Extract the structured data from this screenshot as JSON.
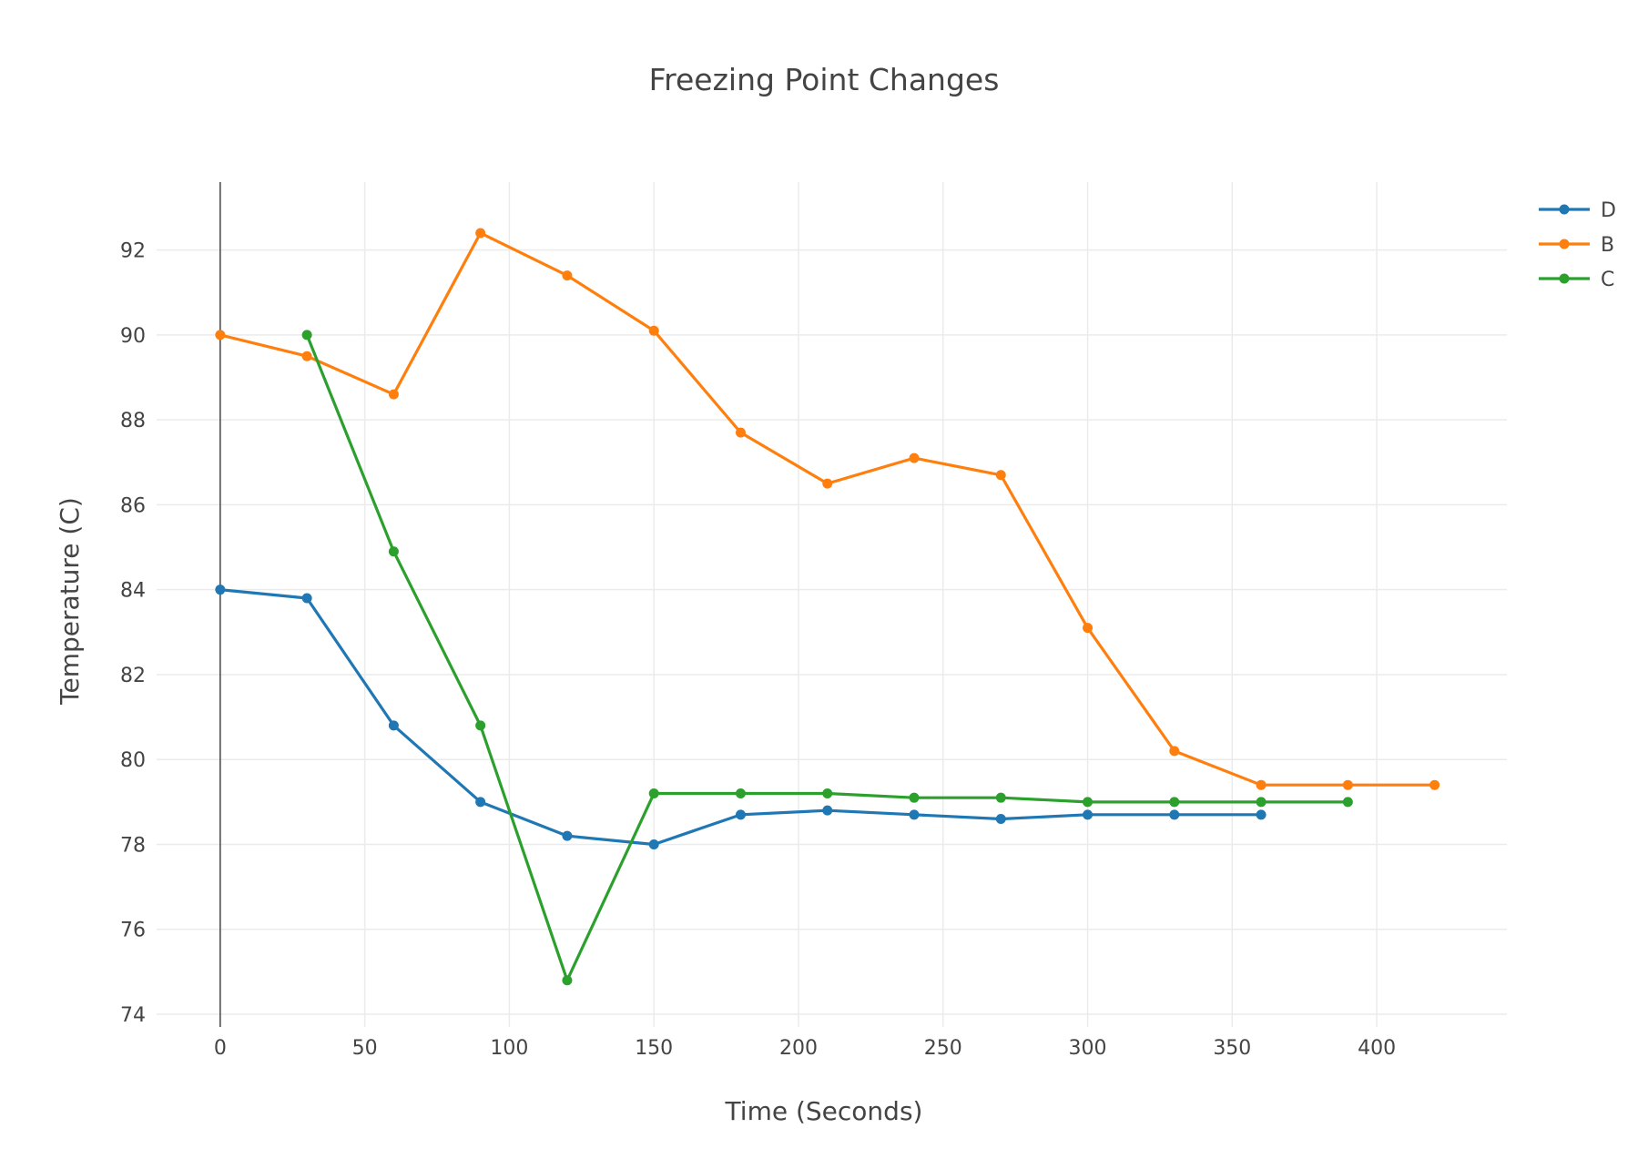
{
  "chart_data": {
    "type": "line",
    "title": "Freezing Point Changes",
    "xlabel": "Time (Seconds)",
    "ylabel": "Temperature (C)",
    "xlim": [
      -22,
      445
    ],
    "ylim": [
      73.7,
      93.6
    ],
    "xticks": [
      0,
      50,
      100,
      150,
      200,
      250,
      300,
      350,
      400
    ],
    "yticks": [
      74,
      76,
      78,
      80,
      82,
      84,
      86,
      88,
      90,
      92
    ],
    "grid": true,
    "legend_position": "top-right",
    "series": [
      {
        "name": "D",
        "color": "#1f77b4",
        "x": [
          0,
          30,
          60,
          90,
          120,
          150,
          180,
          210,
          240,
          270,
          300,
          330,
          360
        ],
        "y": [
          84.0,
          83.8,
          80.8,
          79.0,
          78.2,
          78.0,
          78.7,
          78.8,
          78.7,
          78.6,
          78.7,
          78.7,
          78.7
        ]
      },
      {
        "name": "B",
        "color": "#ff7f0e",
        "x": [
          0,
          30,
          60,
          90,
          120,
          150,
          180,
          210,
          240,
          270,
          300,
          330,
          360,
          390,
          420
        ],
        "y": [
          90.0,
          89.5,
          88.6,
          92.4,
          91.4,
          90.1,
          87.7,
          86.5,
          87.1,
          86.7,
          83.1,
          80.2,
          79.4,
          79.4,
          79.4
        ]
      },
      {
        "name": "C",
        "color": "#2ca02c",
        "x": [
          30,
          60,
          90,
          120,
          150,
          180,
          210,
          240,
          270,
          300,
          330,
          360,
          390
        ],
        "y": [
          90.0,
          84.9,
          80.8,
          74.8,
          79.2,
          79.2,
          79.2,
          79.1,
          79.1,
          79.0,
          79.0,
          79.0,
          79.0
        ]
      }
    ]
  }
}
